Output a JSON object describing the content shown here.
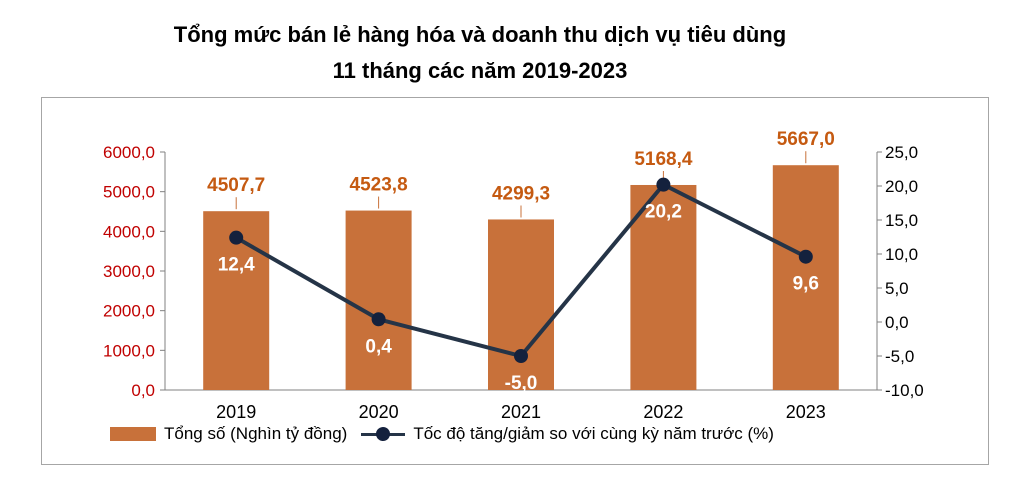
{
  "title_line1": "Tổng mức bán lẻ hàng hóa và doanh thu dịch vụ tiêu dùng",
  "title_line2": "11 tháng các năm 2019-2023",
  "colors": {
    "bar": "#c8713a",
    "line": "#253447",
    "marker": "#14213d",
    "left_axis": "#c00000",
    "bar_label": "#c55a11"
  },
  "chart_data": {
    "type": "bar",
    "categories": [
      "2019",
      "2020",
      "2021",
      "2022",
      "2023"
    ],
    "series": [
      {
        "name": "Tổng số (Nghìn tỷ đồng)",
        "type": "bar",
        "axis": "left",
        "values": [
          4507.7,
          4523.8,
          4299.3,
          5168.4,
          5667.0
        ],
        "labels": [
          "4507,7",
          "4523,8",
          "4299,3",
          "5168,4",
          "5667,0"
        ]
      },
      {
        "name": "Tốc độ tăng/giảm so với cùng kỳ năm trước (%)",
        "type": "line",
        "axis": "right",
        "values": [
          12.4,
          0.4,
          -5.0,
          20.2,
          9.6
        ],
        "labels": [
          "12,4",
          "0,4",
          "-5,0",
          "20,2",
          "9,6"
        ]
      }
    ],
    "y_left": {
      "min": 0,
      "max": 6000,
      "ticks": [
        "0,0",
        "1000,0",
        "2000,0",
        "3000,0",
        "4000,0",
        "5000,0",
        "6000,0"
      ]
    },
    "y_right": {
      "min": -10,
      "max": 25,
      "ticks": [
        "-10,0",
        "-5,0",
        "0,0",
        "5,0",
        "10,0",
        "15,0",
        "20,0",
        "25,0"
      ]
    },
    "legend_position": "bottom",
    "grid": false
  }
}
